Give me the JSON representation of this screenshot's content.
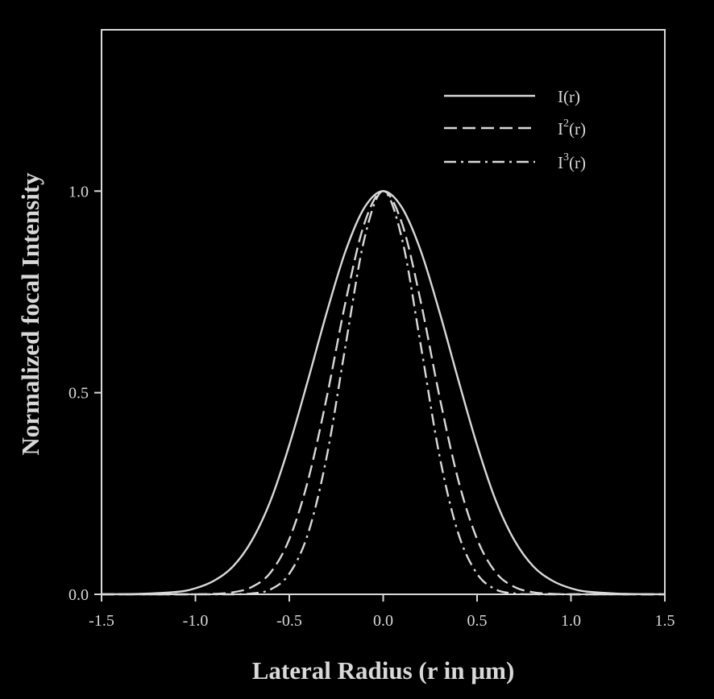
{
  "colors": {
    "background": "#000000",
    "foreground": "#d9d9d9"
  },
  "chart_data": {
    "type": "line",
    "xlabel": "Lateral Radius (r in µm)",
    "ylabel": "Normalized focal Intensity",
    "xlim": [
      -1.5,
      1.5
    ],
    "ylim": [
      0.0,
      1.4
    ],
    "xticks": [
      -1.5,
      -1.0,
      -0.5,
      0.0,
      0.5,
      1.0,
      1.5
    ],
    "xtick_labels": [
      "-1.5",
      "-1.0",
      "-0.5",
      "0.0",
      "0.5",
      "1.0",
      "1.5"
    ],
    "yticks": [
      0.0,
      0.5,
      1.0
    ],
    "ytick_labels": [
      "0.0",
      "0.5",
      "1.0"
    ],
    "grid": false,
    "legend_position": "top-right",
    "x": [
      -1.5,
      -1.3,
      -1.1,
      -1.0,
      -0.9,
      -0.8,
      -0.7,
      -0.6,
      -0.5,
      -0.4,
      -0.3,
      -0.2,
      -0.1,
      0.0,
      0.1,
      0.2,
      0.3,
      0.4,
      0.5,
      0.6,
      0.7,
      0.8,
      0.9,
      1.0,
      1.1,
      1.3,
      1.5
    ],
    "series": [
      {
        "name": "I(r)",
        "legend_base": "I",
        "legend_power": "",
        "legend_arg": "(r)",
        "dash": "solid",
        "values": [
          0.0,
          0.001,
          0.006,
          0.015,
          0.034,
          0.069,
          0.133,
          0.232,
          0.37,
          0.532,
          0.7,
          0.852,
          0.959,
          1.0,
          0.959,
          0.852,
          0.7,
          0.532,
          0.37,
          0.232,
          0.133,
          0.069,
          0.034,
          0.015,
          0.006,
          0.001,
          0.0
        ]
      },
      {
        "name": "I2(r)",
        "legend_base": "I",
        "legend_power": "2",
        "legend_arg": "(r)",
        "dash": "dashed",
        "values": [
          0.0,
          0.0,
          0.0,
          0.0,
          0.001,
          0.005,
          0.018,
          0.054,
          0.137,
          0.283,
          0.49,
          0.726,
          0.92,
          1.0,
          0.92,
          0.726,
          0.49,
          0.283,
          0.137,
          0.054,
          0.018,
          0.005,
          0.001,
          0.0,
          0.0,
          0.0,
          0.0
        ]
      },
      {
        "name": "I3(r)",
        "legend_base": "I",
        "legend_power": "3",
        "legend_arg": "(r)",
        "dash": "dashdot",
        "values": [
          0.0,
          0.0,
          0.0,
          0.0,
          0.0,
          0.0,
          0.002,
          0.012,
          0.051,
          0.151,
          0.343,
          0.618,
          0.882,
          1.0,
          0.882,
          0.618,
          0.343,
          0.151,
          0.051,
          0.012,
          0.002,
          0.0,
          0.0,
          0.0,
          0.0,
          0.0,
          0.0
        ]
      }
    ]
  }
}
